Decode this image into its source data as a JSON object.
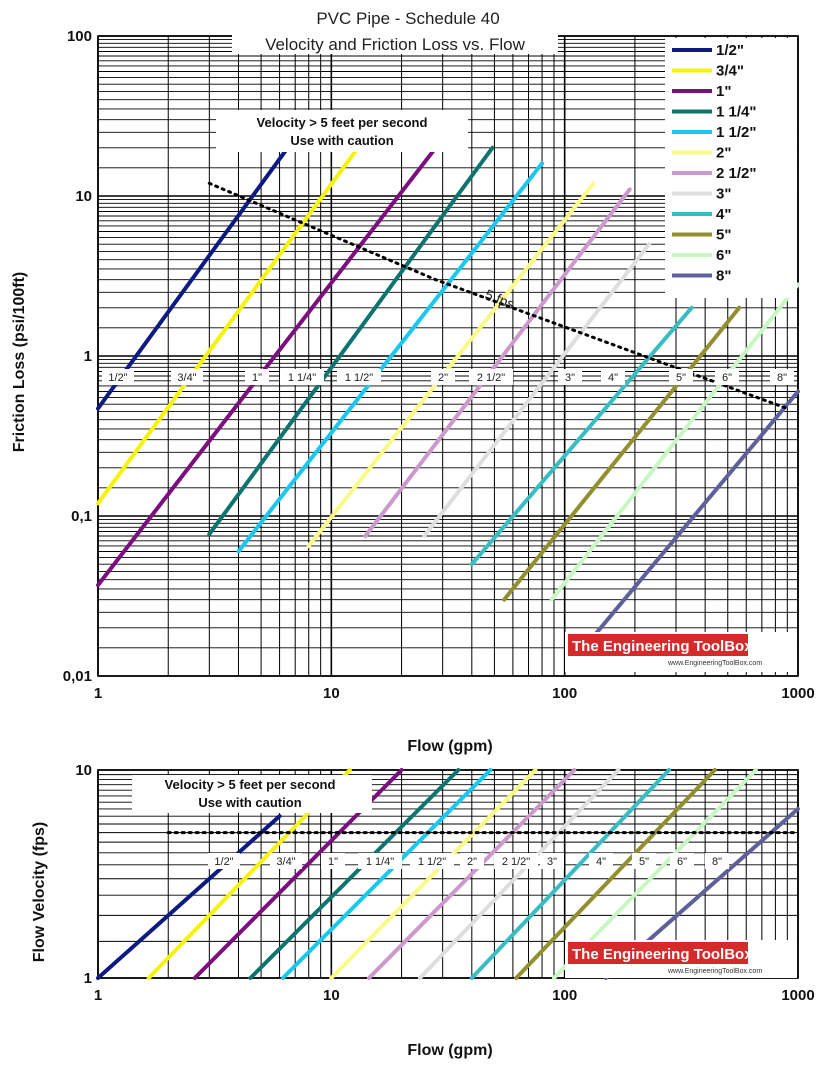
{
  "chart_data": [
    {
      "type": "line",
      "title": "PVC Pipe - Schedule 40",
      "subtitle": "Velocity and Friction Loss vs. Flow",
      "xlabel": "Flow (gpm)",
      "ylabel": "Friction Loss (psi/100ft)",
      "x_scale": "log",
      "y_scale": "log",
      "xlim": [
        1,
        1000
      ],
      "ylim": [
        0.01,
        100
      ],
      "x_ticks": [
        1,
        10,
        100,
        1000
      ],
      "x_tick_labels": [
        "1",
        "10",
        "100",
        "1000"
      ],
      "y_ticks": [
        0.01,
        0.1,
        1,
        10,
        100
      ],
      "y_tick_labels": [
        "0,01",
        "0,1",
        "1",
        "10",
        "100"
      ],
      "grid": true,
      "legend_position": "top-right",
      "series": [
        {
          "name": "1/2\"",
          "color": "#0c1a82",
          "x": [
            1,
            6.5
          ],
          "y": [
            0.47,
            20
          ]
        },
        {
          "name": "3/4\"",
          "color": "#f6f30a",
          "x": [
            1,
            13
          ],
          "y": [
            0.12,
            20
          ]
        },
        {
          "name": "1\"",
          "color": "#7b0f7e",
          "x": [
            1,
            28
          ],
          "y": [
            0.037,
            20
          ]
        },
        {
          "name": "1 1/4\"",
          "color": "#0d7470",
          "x": [
            3,
            49
          ],
          "y": [
            0.077,
            20
          ]
        },
        {
          "name": "1 1/2\"",
          "color": "#19c7ef",
          "x": [
            4,
            80
          ],
          "y": [
            0.06,
            16
          ]
        },
        {
          "name": "2\"",
          "color": "#fafa87",
          "x": [
            8,
            133
          ],
          "y": [
            0.065,
            12
          ]
        },
        {
          "name": "2 1/2\"",
          "color": "#cc99cc",
          "x": [
            14,
            190
          ],
          "y": [
            0.075,
            11
          ]
        },
        {
          "name": "3\"",
          "color": "#dedede",
          "x": [
            25,
            230
          ],
          "y": [
            0.075,
            5
          ]
        },
        {
          "name": "4\"",
          "color": "#38bdc4",
          "x": [
            40,
            350
          ],
          "y": [
            0.05,
            2
          ]
        },
        {
          "name": "5\"",
          "color": "#928f2e",
          "x": [
            55,
            560
          ],
          "y": [
            0.03,
            2
          ]
        },
        {
          "name": "6\"",
          "color": "#c8f7c3",
          "x": [
            88,
            1000
          ],
          "y": [
            0.03,
            2.8
          ]
        },
        {
          "name": "8\"",
          "color": "#5f5f9a",
          "x": [
            130,
            1000
          ],
          "y": [
            0.017,
            0.6
          ]
        }
      ],
      "reference_line": {
        "label": "5 fps",
        "style": "dotted",
        "x": [
          3,
          28,
          900
        ],
        "y": [
          12,
          3,
          0.47
        ]
      },
      "pipe_labels": [
        "1/2\"",
        "3/4\"",
        "1\"",
        "1 1/4\"",
        "1 1/2\"",
        "2\"",
        "2 1/2\"",
        "3\"",
        "4\"",
        "5\"",
        "6\"",
        "8\""
      ],
      "annotation": [
        "Velocity > 5 feet per second",
        "Use with caution"
      ],
      "watermark": {
        "title": "The Engineering ToolBox",
        "url": "www.EngineeringToolBox.com"
      }
    },
    {
      "type": "line",
      "title": "",
      "xlabel": "Flow (gpm)",
      "ylabel": "Flow Velocity (fps)",
      "x_scale": "log",
      "y_scale": "log",
      "xlim": [
        1,
        1000
      ],
      "ylim": [
        1,
        10
      ],
      "x_ticks": [
        1,
        10,
        100,
        1000
      ],
      "x_tick_labels": [
        "1",
        "10",
        "100",
        "1000"
      ],
      "y_ticks": [
        1,
        10
      ],
      "y_tick_labels": [
        "1",
        "10"
      ],
      "grid": true,
      "series": [
        {
          "name": "1/2\"",
          "color": "#0c1a82",
          "x": [
            1,
            6
          ],
          "y": [
            1,
            6
          ]
        },
        {
          "name": "3/4\"",
          "color": "#f6f30a",
          "x": [
            1.65,
            12
          ],
          "y": [
            1,
            10
          ]
        },
        {
          "name": "1\"",
          "color": "#7b0f7e",
          "x": [
            2.6,
            20
          ],
          "y": [
            1,
            10
          ]
        },
        {
          "name": "1 1/4\"",
          "color": "#0d7470",
          "x": [
            4.5,
            35
          ],
          "y": [
            1,
            10
          ]
        },
        {
          "name": "1 1/2\"",
          "color": "#19c7ef",
          "x": [
            6.2,
            48
          ],
          "y": [
            1,
            10
          ]
        },
        {
          "name": "2\"",
          "color": "#fafa87",
          "x": [
            10,
            75
          ],
          "y": [
            1,
            10
          ]
        },
        {
          "name": "2 1/2\"",
          "color": "#cc99cc",
          "x": [
            14.5,
            110
          ],
          "y": [
            1,
            10
          ]
        },
        {
          "name": "3\"",
          "color": "#dedede",
          "x": [
            24,
            170
          ],
          "y": [
            1,
            10
          ]
        },
        {
          "name": "4\"",
          "color": "#38bdc4",
          "x": [
            40,
            280
          ],
          "y": [
            1,
            10
          ]
        },
        {
          "name": "5\"",
          "color": "#928f2e",
          "x": [
            62,
            440
          ],
          "y": [
            1,
            10
          ]
        },
        {
          "name": "6\"",
          "color": "#c8f7c3",
          "x": [
            90,
            660
          ],
          "y": [
            1,
            10
          ]
        },
        {
          "name": "8\"",
          "color": "#5f5f9a",
          "x": [
            150,
            1000
          ],
          "y": [
            1,
            6.5
          ]
        }
      ],
      "reference_line": {
        "label": "",
        "style": "dotted",
        "x": [
          2,
          1000
        ],
        "y": [
          5,
          5
        ]
      },
      "pipe_labels": [
        "1/2\"",
        "3/4\"",
        "1\"",
        "1 1/4\"",
        "1 1/2\"",
        "2\"",
        "2 1/2\"",
        "3\"",
        "4\"",
        "5\"",
        "6\"",
        "8\""
      ],
      "annotation": [
        "Velocity > 5 feet per second",
        "Use with caution"
      ],
      "watermark": {
        "title": "The Engineering ToolBox",
        "url": "www.EngineeringToolBox.com"
      }
    }
  ]
}
